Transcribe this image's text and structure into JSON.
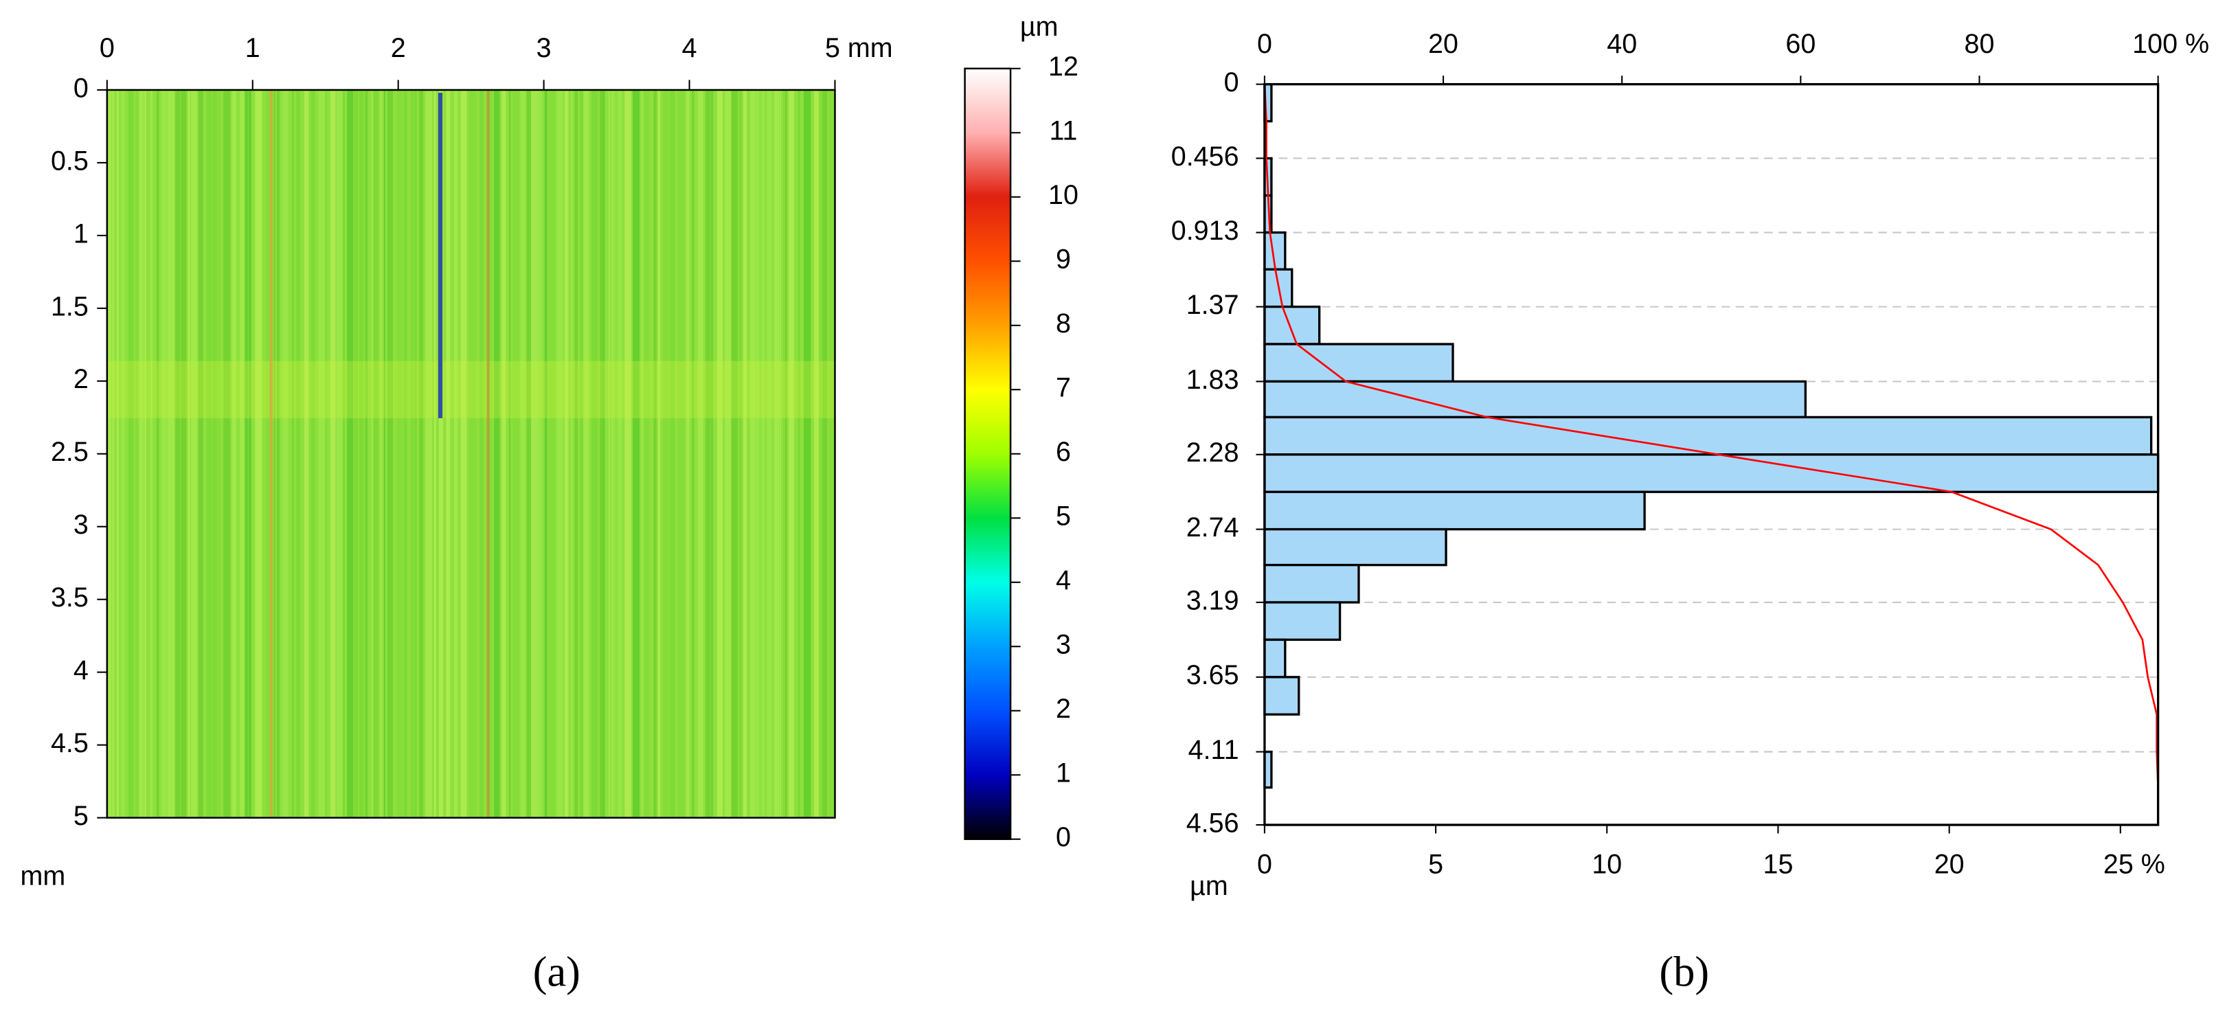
{
  "chart_data": [
    {
      "type": "heatmap",
      "panel_label": "(a)",
      "ylabel": "mm",
      "xlim": [
        0,
        5
      ],
      "xticks": [
        0,
        1,
        2,
        3,
        4,
        {
          "value": 5,
          "label": "5 mm"
        }
      ],
      "ylim": [
        0,
        5
      ],
      "yticks": [
        0,
        0.5,
        1,
        1.5,
        2,
        2.5,
        3,
        3.5,
        4,
        4.5,
        5
      ],
      "y_reversed": true,
      "colorbar": {
        "label": "µm",
        "lim": [
          0,
          12
        ],
        "ticks": [
          0,
          1,
          2,
          3,
          4,
          5,
          6,
          7,
          8,
          9,
          10,
          11,
          12
        ],
        "colors": [
          "#000000",
          "#0000c0",
          "#0050ff",
          "#00a0ff",
          "#00ffe8",
          "#00e040",
          "#a0ff00",
          "#ffff00",
          "#ffa000",
          "#ff5000",
          "#e02010",
          "#ffb0b0",
          "#ffffff"
        ]
      }
    },
    {
      "type": "histogram",
      "orientation": "horizontal",
      "panel_label": "(b)",
      "ylabel": "µm",
      "bins": [
        0,
        0.228,
        0.456,
        0.685,
        0.913,
        1.14,
        1.37,
        1.6,
        1.83,
        2.05,
        2.28,
        2.51,
        2.74,
        2.96,
        3.19,
        3.42,
        3.65,
        3.88,
        4.11,
        4.33,
        4.56
      ],
      "values": [
        0.2,
        0,
        0.2,
        0.2,
        0.6,
        0.8,
        1.6,
        5.5,
        15.8,
        25.9,
        26.1,
        11.1,
        5.3,
        2.75,
        2.2,
        0.6,
        1.0,
        0,
        0.2,
        0
      ],
      "color": "#a8d8f8",
      "edgecolor": "#000000",
      "xlim": [
        0,
        26.1
      ],
      "xticks": [
        0,
        5,
        10,
        15,
        20,
        {
          "value": 25,
          "label": "25 %"
        }
      ],
      "ylim": [
        0,
        4.56
      ],
      "yticks": [
        0,
        0.456,
        0.913,
        1.37,
        1.83,
        2.28,
        2.74,
        3.19,
        3.65,
        4.11,
        4.56
      ],
      "y_reversed": true,
      "grid": true,
      "cumulative": {
        "color": "#ff0000",
        "depth": [
          0,
          0.228,
          0.456,
          0.685,
          0.913,
          1.14,
          1.37,
          1.6,
          1.83,
          2.05,
          2.28,
          2.51,
          2.74,
          2.96,
          3.19,
          3.42,
          3.65,
          3.88,
          4.11,
          4.33,
          4.56
        ],
        "values": [
          0,
          0.2,
          0.2,
          0.4,
          0.6,
          1.2,
          2.0,
          3.6,
          9.1,
          24.9,
          50.8,
          76.9,
          88.0,
          93.3,
          96.05,
          98.25,
          98.85,
          99.85,
          99.85,
          100,
          100
        ],
        "xlim": [
          0,
          100
        ],
        "xticks": [
          0,
          20,
          40,
          60,
          80,
          {
            "value": 100,
            "label": "100 %"
          }
        ]
      }
    }
  ]
}
